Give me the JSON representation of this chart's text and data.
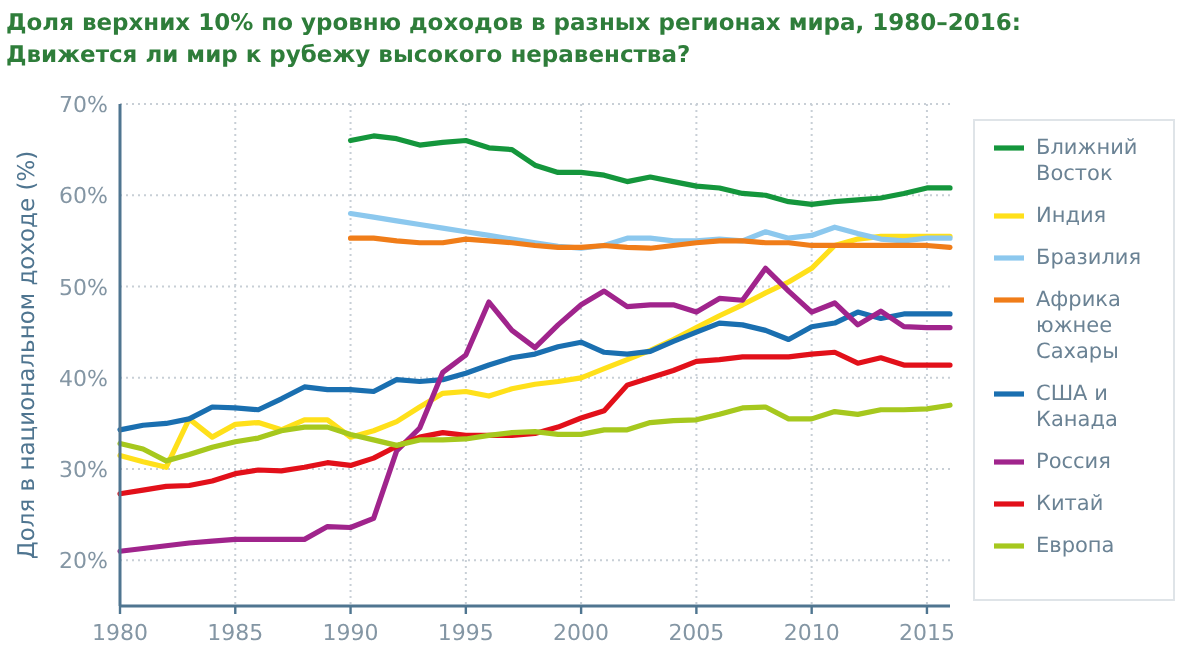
{
  "chart_data": {
    "type": "line",
    "title": "Доля верхних 10% по уровню доходов в разных регионах мира, 1980–2016: Движется ли мир к рубежу высокого неравенства?",
    "ylabel": "Доля в национальном доходе (%)",
    "x": [
      1980,
      1981,
      1982,
      1983,
      1984,
      1985,
      1986,
      1987,
      1988,
      1989,
      1990,
      1991,
      1992,
      1993,
      1994,
      1995,
      1996,
      1997,
      1998,
      1999,
      2000,
      2001,
      2002,
      2003,
      2004,
      2005,
      2006,
      2007,
      2008,
      2009,
      2010,
      2011,
      2012,
      2013,
      2014,
      2015,
      2016
    ],
    "xlim": [
      1980,
      2016
    ],
    "xticks": [
      1980,
      1985,
      1990,
      1995,
      2000,
      2005,
      2010,
      2015
    ],
    "ylim": [
      15,
      70
    ],
    "yticks": [
      {
        "value": 20,
        "label": "20%"
      },
      {
        "value": 30,
        "label": "30%"
      },
      {
        "value": 40,
        "label": "40%"
      },
      {
        "value": 50,
        "label": "50%"
      },
      {
        "value": 60,
        "label": "60%"
      },
      {
        "value": 70,
        "label": "70%"
      }
    ],
    "grid": true,
    "legend": "right",
    "marker": "none",
    "line_style": "solid",
    "series": [
      {
        "name": "Ближний Восток",
        "color": "#14963c",
        "values": [
          null,
          null,
          null,
          null,
          null,
          null,
          null,
          null,
          null,
          null,
          66,
          66.5,
          66.2,
          65.5,
          65.8,
          66,
          65.2,
          65,
          63.3,
          62.5,
          62.5,
          62.2,
          61.5,
          62,
          61.5,
          61,
          60.8,
          60.2,
          60,
          59.3,
          59,
          59.3,
          59.5,
          59.7,
          60.2,
          60.8,
          60.8
        ]
      },
      {
        "name": "Индия",
        "color": "#ffe01a",
        "values": [
          31.5,
          30.8,
          30.2,
          35.5,
          33.5,
          34.9,
          35.1,
          34.3,
          35.4,
          35.4,
          33.5,
          34.2,
          35.2,
          36.8,
          38.3,
          38.5,
          38,
          38.8,
          39.3,
          39.6,
          40,
          41,
          42,
          43,
          44.2,
          45.5,
          46.8,
          48,
          49.3,
          50.5,
          52,
          54.5,
          55.2,
          55.5,
          55.5,
          55.5,
          55.5
        ]
      },
      {
        "name": "Бразилия",
        "color": "#8cc8ee",
        "values": [
          null,
          null,
          null,
          null,
          null,
          null,
          null,
          null,
          null,
          null,
          58,
          57.6,
          57.2,
          56.8,
          56.4,
          56,
          55.6,
          55.2,
          54.8,
          54.4,
          54.2,
          54.5,
          55.3,
          55.3,
          55,
          55,
          55.2,
          55,
          56,
          55.3,
          55.6,
          56.5,
          55.8,
          55.2,
          55,
          55.3,
          55.3
        ]
      },
      {
        "name": "Африка южнее Сахары",
        "color": "#f07d19",
        "values": [
          null,
          null,
          null,
          null,
          null,
          null,
          null,
          null,
          null,
          null,
          55.3,
          55.3,
          55,
          54.8,
          54.8,
          55.2,
          55,
          54.8,
          54.5,
          54.3,
          54.3,
          54.5,
          54.3,
          54.2,
          54.5,
          54.8,
          55,
          55,
          54.8,
          54.8,
          54.5,
          54.5,
          54.5,
          54.5,
          54.5,
          54.5,
          54.3
        ]
      },
      {
        "name": "США и Канада",
        "color": "#1a6fb0",
        "values": [
          34.3,
          34.8,
          35,
          35.5,
          36.8,
          36.7,
          36.5,
          37.7,
          39,
          38.7,
          38.7,
          38.5,
          39.8,
          39.6,
          39.8,
          40.5,
          41.4,
          42.2,
          42.6,
          43.4,
          43.9,
          42.8,
          42.6,
          42.9,
          44,
          45,
          46,
          45.8,
          45.2,
          44.2,
          45.6,
          46,
          47.2,
          46.5,
          47,
          47,
          47
        ]
      },
      {
        "name": "Россия",
        "color": "#a0248c",
        "values": [
          21,
          21.3,
          21.6,
          21.9,
          22.1,
          22.3,
          22.3,
          22.3,
          22.3,
          23.7,
          23.6,
          24.6,
          32,
          34.5,
          40.6,
          42.5,
          48.3,
          45.2,
          43.3,
          45.8,
          48,
          49.5,
          47.8,
          48,
          48,
          47.2,
          48.7,
          48.5,
          52,
          49.5,
          47.2,
          48.2,
          45.8,
          47.3,
          45.6,
          45.5,
          45.5
        ]
      },
      {
        "name": "Китай",
        "color": "#e2101a",
        "values": [
          27.3,
          27.7,
          28.1,
          28.2,
          28.7,
          29.5,
          29.9,
          29.8,
          30.2,
          30.7,
          30.4,
          31.2,
          32.5,
          33.5,
          34,
          33.7,
          33.7,
          33.7,
          33.9,
          34.6,
          35.6,
          36.4,
          39.2,
          40,
          40.8,
          41.8,
          42,
          42.3,
          42.3,
          42.3,
          42.6,
          42.8,
          41.6,
          42.2,
          41.4,
          41.4,
          41.4
        ]
      },
      {
        "name": "Европа",
        "color": "#a6c81e",
        "values": [
          32.8,
          32.2,
          30.9,
          31.6,
          32.4,
          33,
          33.4,
          34.2,
          34.6,
          34.6,
          33.8,
          33.2,
          32.6,
          33.2,
          33.2,
          33.3,
          33.7,
          34,
          34.1,
          33.8,
          33.8,
          34.3,
          34.3,
          35.1,
          35.3,
          35.4,
          36,
          36.7,
          36.8,
          35.5,
          35.5,
          36.3,
          36,
          36.5,
          36.5,
          36.6,
          37
        ]
      }
    ]
  }
}
